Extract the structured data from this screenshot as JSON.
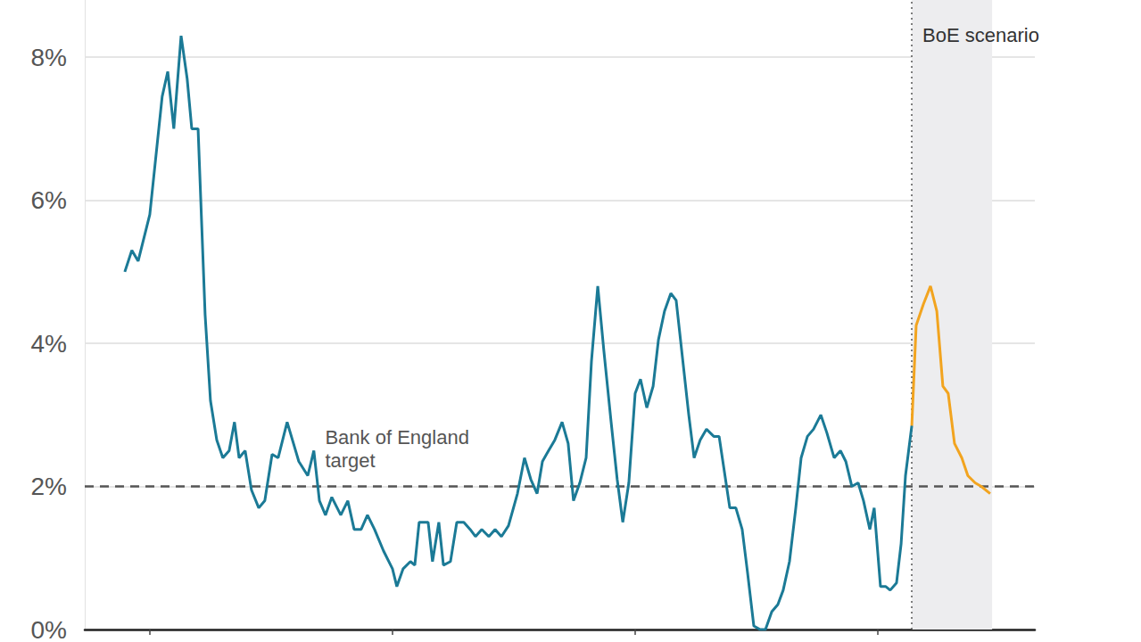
{
  "chart_data": {
    "type": "line",
    "grid": true,
    "tick_labels": "y",
    "xlim": [
      1987.32,
      2026.47
    ],
    "xticks": [
      1990,
      2000,
      2010,
      2020
    ],
    "ylim": [
      0,
      8.8
    ],
    "yticks": [
      {
        "value": 0,
        "label": "0%"
      },
      {
        "value": 2,
        "label": "2%"
      },
      {
        "value": 4,
        "label": "4%"
      },
      {
        "value": 6,
        "label": "6%"
      },
      {
        "value": 8,
        "label": "8%"
      }
    ],
    "target": {
      "label": "Bank of England target",
      "value": 2
    },
    "scenario": {
      "label": "BoE scenario",
      "x": [
        2021.4,
        2024.71
      ]
    },
    "series": [
      {
        "color": "#1b7a96",
        "x": [
          1988.97,
          1989.26,
          1989.52,
          1990.0,
          1990.51,
          1990.74,
          1990.99,
          1991.29,
          1991.54,
          1991.73,
          1991.99,
          1992.28,
          1992.5,
          1992.76,
          1993.01,
          1993.27,
          1993.49,
          1993.68,
          1993.93,
          1994.19,
          1994.49,
          1994.74,
          1995.04,
          1995.29,
          1995.66,
          1996.14,
          1996.51,
          1996.76,
          1996.99,
          1997.24,
          1997.5,
          1997.87,
          1998.16,
          1998.42,
          1998.71,
          1998.97,
          1999.26,
          1999.63,
          2000.0,
          2000.18,
          2000.44,
          2000.74,
          2000.92,
          2001.1,
          2001.47,
          2001.65,
          2001.91,
          2002.1,
          2002.39,
          2002.65,
          2002.94,
          2003.2,
          2003.42,
          2003.68,
          2003.97,
          2004.23,
          2004.49,
          2004.78,
          2005.15,
          2005.44,
          2005.7,
          2005.96,
          2006.18,
          2006.43,
          2006.69,
          2006.99,
          2007.24,
          2007.46,
          2007.72,
          2007.98,
          2008.2,
          2008.46,
          2008.71,
          2009.01,
          2009.26,
          2009.49,
          2009.74,
          2010.0,
          2010.22,
          2010.48,
          2010.74,
          2010.96,
          2011.21,
          2011.47,
          2011.69,
          2011.95,
          2012.21,
          2012.43,
          2012.68,
          2012.94,
          2013.24,
          2013.46,
          2013.68,
          2013.9,
          2014.15,
          2014.41,
          2014.63,
          2014.89,
          2015.15,
          2015.37,
          2015.63,
          2015.88,
          2016.1,
          2016.36,
          2016.62,
          2016.84,
          2017.1,
          2017.35,
          2017.65,
          2017.9,
          2018.2,
          2018.46,
          2018.68,
          2018.93,
          2019.19,
          2019.41,
          2019.67,
          2019.85,
          2020.11,
          2020.33,
          2020.51,
          2020.77,
          2020.96,
          2021.14,
          2021.4
        ],
        "values": [
          5.0,
          5.3,
          5.15,
          5.8,
          7.45,
          7.8,
          7.0,
          8.3,
          7.7,
          7.0,
          7.0,
          4.4,
          3.2,
          2.65,
          2.4,
          2.5,
          2.9,
          2.4,
          2.5,
          1.95,
          1.7,
          1.8,
          2.45,
          2.4,
          2.9,
          2.35,
          2.15,
          2.5,
          1.8,
          1.6,
          1.85,
          1.6,
          1.8,
          1.4,
          1.4,
          1.6,
          1.4,
          1.1,
          0.85,
          0.6,
          0.85,
          0.95,
          0.9,
          1.5,
          1.5,
          0.95,
          1.5,
          0.9,
          0.95,
          1.5,
          1.5,
          1.4,
          1.3,
          1.4,
          1.3,
          1.4,
          1.3,
          1.45,
          1.9,
          2.4,
          2.1,
          1.9,
          2.35,
          2.5,
          2.65,
          2.9,
          2.6,
          1.8,
          2.05,
          2.4,
          3.75,
          4.8,
          3.9,
          2.9,
          2.1,
          1.5,
          2.05,
          3.3,
          3.5,
          3.1,
          3.4,
          4.05,
          4.45,
          4.7,
          4.6,
          3.8,
          3.0,
          2.4,
          2.65,
          2.8,
          2.7,
          2.7,
          2.2,
          1.7,
          1.7,
          1.4,
          0.8,
          0.05,
          0.0,
          0.0,
          0.25,
          0.35,
          0.55,
          0.95,
          1.7,
          2.4,
          2.7,
          2.8,
          3.0,
          2.75,
          2.4,
          2.5,
          2.35,
          2.0,
          2.05,
          1.8,
          1.4,
          1.7,
          0.6,
          0.6,
          0.55,
          0.65,
          1.2,
          2.15,
          2.85
        ]
      },
      {
        "color": "#f2a41f",
        "x": [
          2021.4,
          2021.58,
          2021.88,
          2022.17,
          2022.43,
          2022.68,
          2022.9,
          2023.16,
          2023.46,
          2023.71,
          2024.01,
          2024.26,
          2024.63
        ],
        "values": [
          2.85,
          4.25,
          4.55,
          4.8,
          4.45,
          3.4,
          3.3,
          2.6,
          2.4,
          2.15,
          2.05,
          2.0,
          1.9
        ]
      }
    ]
  }
}
